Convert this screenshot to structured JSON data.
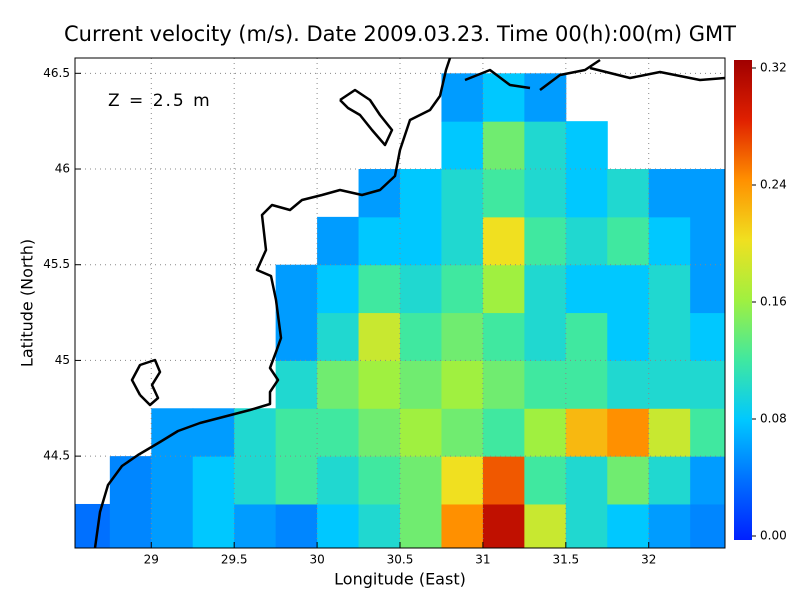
{
  "chart_data": {
    "type": "heatmap",
    "title": "Current velocity (m/s). Date 2009.03.23. Time 00(h):00(m) GMT",
    "annotation": "Z = 2.5 m",
    "x_label": "Longitude (East)",
    "y_label": "Latitude (North)",
    "xlim": [
      28.54,
      32.46
    ],
    "ylim": [
      44.02,
      46.58
    ],
    "xticks": [
      29,
      29.5,
      30,
      30.5,
      31,
      31.5,
      32
    ],
    "yticks": [
      44.5,
      45,
      45.5,
      46,
      46.5
    ],
    "grid": true,
    "clim": [
      0,
      0.32
    ],
    "cticks": [
      {
        "value": 0,
        "label": "0.00"
      },
      {
        "value": 0.08,
        "label": "0.08"
      },
      {
        "value": 0.16,
        "label": "0.16"
      },
      {
        "value": 0.24,
        "label": "0.24"
      },
      {
        "value": 0.32,
        "label": "0.32"
      }
    ],
    "colors": [
      "#0020ff",
      "#0070ff",
      "#00c8ff",
      "#40e8a0",
      "#a0f040",
      "#f0e020",
      "#ff9000",
      "#e02000",
      "#a00000"
    ],
    "lon": [
      28.625,
      28.875,
      29.125,
      29.375,
      29.625,
      29.875,
      30.125,
      30.375,
      30.625,
      30.875,
      31.125,
      31.375,
      31.625,
      31.875,
      32.125,
      32.375
    ],
    "lat": [
      44.125,
      44.375,
      44.625,
      44.875,
      45.125,
      45.375,
      45.625,
      45.875,
      46.125,
      46.375
    ],
    "values": [
      [
        0.04,
        0.05,
        0.06,
        0.08,
        0.06,
        0.05,
        0.08,
        0.1,
        0.14,
        0.24,
        0.3,
        0.18,
        0.1,
        0.08,
        0.06,
        0.05
      ],
      [
        null,
        0.05,
        0.06,
        0.08,
        0.1,
        0.12,
        0.1,
        0.12,
        0.14,
        0.2,
        0.26,
        0.12,
        0.1,
        0.14,
        0.1,
        0.06
      ],
      [
        null,
        null,
        0.06,
        0.06,
        0.1,
        0.12,
        0.12,
        0.14,
        0.16,
        0.14,
        0.12,
        0.16,
        0.22,
        0.24,
        0.18,
        0.12
      ],
      [
        null,
        null,
        null,
        null,
        null,
        0.1,
        0.14,
        0.16,
        0.14,
        0.16,
        0.14,
        0.12,
        0.12,
        0.1,
        0.1,
        0.1
      ],
      [
        null,
        null,
        null,
        null,
        null,
        0.06,
        0.1,
        0.18,
        0.12,
        0.14,
        0.12,
        0.1,
        0.12,
        0.08,
        0.1,
        0.08
      ],
      [
        null,
        null,
        null,
        null,
        null,
        0.06,
        0.08,
        0.12,
        0.1,
        0.12,
        0.16,
        0.1,
        0.08,
        0.08,
        0.1,
        0.06
      ],
      [
        null,
        null,
        null,
        null,
        null,
        null,
        0.06,
        0.08,
        0.08,
        0.1,
        0.2,
        0.12,
        0.1,
        0.12,
        0.08,
        0.06
      ],
      [
        null,
        null,
        null,
        null,
        null,
        null,
        null,
        0.06,
        0.08,
        0.1,
        0.12,
        0.1,
        0.08,
        0.1,
        0.06,
        0.06
      ],
      [
        null,
        null,
        null,
        null,
        null,
        null,
        null,
        null,
        null,
        0.08,
        0.14,
        0.1,
        0.08,
        null,
        null,
        null
      ],
      [
        null,
        null,
        null,
        null,
        null,
        null,
        null,
        null,
        null,
        0.06,
        0.08,
        0.06,
        null,
        null,
        null,
        null
      ]
    ]
  }
}
